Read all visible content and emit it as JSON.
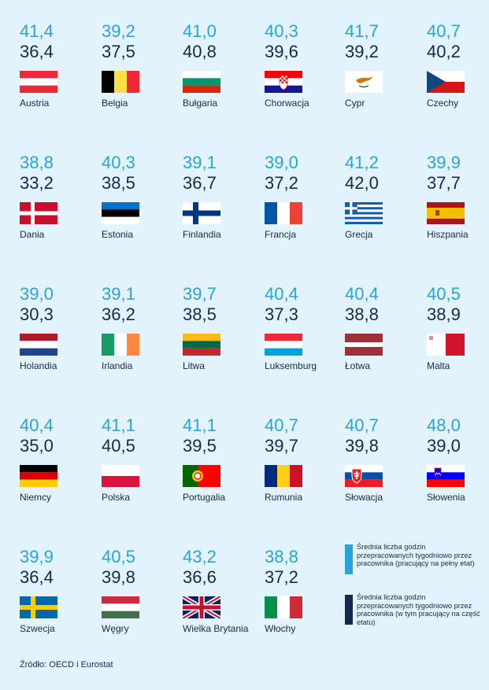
{
  "colors": {
    "fulltime": "#2aa3d6",
    "alltime": "#15294c",
    "background": "#e3f3fb"
  },
  "countries": [
    {
      "name": "Austria",
      "fulltime": "41,4",
      "all": "36,4",
      "flag": "austria"
    },
    {
      "name": "Belgia",
      "fulltime": "39,2",
      "all": "37,5",
      "flag": "belgium"
    },
    {
      "name": "Bułgaria",
      "fulltime": "41,0",
      "all": "40,8",
      "flag": "bulgaria"
    },
    {
      "name": "Chorwacja",
      "fulltime": "40,3",
      "all": "39,6",
      "flag": "croatia"
    },
    {
      "name": "Cypr",
      "fulltime": "41,7",
      "all": "39,2",
      "flag": "cyprus"
    },
    {
      "name": "Czechy",
      "fulltime": "40,7",
      "all": "40,2",
      "flag": "czechia"
    },
    {
      "name": "Dania",
      "fulltime": "38,8",
      "all": "33,2",
      "flag": "denmark"
    },
    {
      "name": "Estonia",
      "fulltime": "40,3",
      "all": "38,5",
      "flag": "estonia"
    },
    {
      "name": "Finlandia",
      "fulltime": "39,1",
      "all": "36,7",
      "flag": "finland"
    },
    {
      "name": "Francja",
      "fulltime": "39,0",
      "all": "37,2",
      "flag": "france"
    },
    {
      "name": "Grecja",
      "fulltime": "41,2",
      "all": "42,0",
      "flag": "greece"
    },
    {
      "name": "Hiszpania",
      "fulltime": "39,9",
      "all": "37,7",
      "flag": "spain"
    },
    {
      "name": "Holandia",
      "fulltime": "39,0",
      "all": "30,3",
      "flag": "netherlands"
    },
    {
      "name": "Irlandia",
      "fulltime": "39,1",
      "all": "36,2",
      "flag": "ireland"
    },
    {
      "name": "Litwa",
      "fulltime": "39,7",
      "all": "38,5",
      "flag": "lithuania"
    },
    {
      "name": "Luksemburg",
      "fulltime": "40,4",
      "all": "37,3",
      "flag": "luxembourg"
    },
    {
      "name": "Łotwa",
      "fulltime": "40,4",
      "all": "38,8",
      "flag": "latvia"
    },
    {
      "name": "Malta",
      "fulltime": "40,5",
      "all": "38,9",
      "flag": "malta"
    },
    {
      "name": "Niemcy",
      "fulltime": "40,4",
      "all": "35,0",
      "flag": "germany"
    },
    {
      "name": "Polska",
      "fulltime": "41,1",
      "all": "40,5",
      "flag": "poland"
    },
    {
      "name": "Portugalia",
      "fulltime": "41,1",
      "all": "39,5",
      "flag": "portugal"
    },
    {
      "name": "Rumunia",
      "fulltime": "40,7",
      "all": "39,7",
      "flag": "romania"
    },
    {
      "name": "Słowacja",
      "fulltime": "40,7",
      "all": "39,8",
      "flag": "slovakia"
    },
    {
      "name": "Słowenia",
      "fulltime": "48,0",
      "all": "39,0",
      "flag": "slovenia"
    },
    {
      "name": "Szwecja",
      "fulltime": "39,9",
      "all": "36,4",
      "flag": "sweden"
    },
    {
      "name": "Węgry",
      "fulltime": "40,5",
      "all": "39,8",
      "flag": "hungary"
    },
    {
      "name": "Wielka Brytania",
      "fulltime": "43,2",
      "all": "36,6",
      "flag": "uk"
    },
    {
      "name": "Włochy",
      "fulltime": "38,8",
      "all": "37,2",
      "flag": "italy"
    }
  ],
  "legend": [
    {
      "text": "Średnia liczba godzin przepracowanych tygodniowo przez pracownika (pracujący na pełny etat)",
      "color": "#2aa3d6"
    },
    {
      "text": "Średnia liczba godzin przepracowanych tygodniowo przez pracownika (w tym pracujący na część etatu)",
      "color": "#15294c"
    }
  ],
  "source": "Źródło: OECD i Eurostat"
}
